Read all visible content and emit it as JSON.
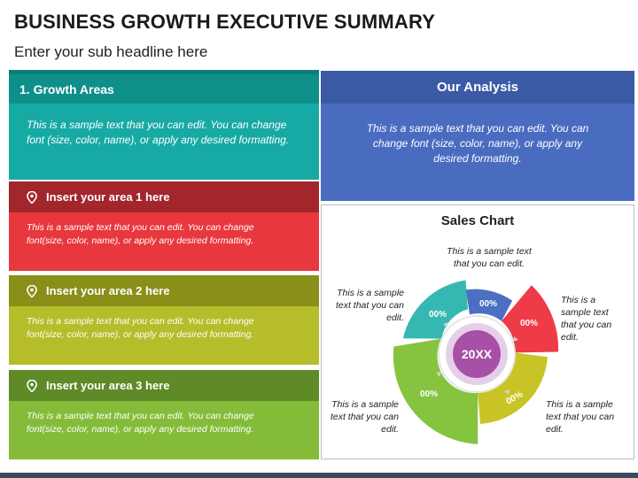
{
  "header": {
    "title": "BUSINESS GROWTH EXECUTIVE SUMMARY",
    "subtitle": "Enter your sub headline here"
  },
  "growth": {
    "title": "1. Growth Areas",
    "text": "This is a sample text that you can edit. You can change font (size, color, name), or apply any desired formatting.",
    "colors": {
      "header": "#0f8f8a",
      "body": "#17aaa4",
      "tab": "#0b7d78"
    }
  },
  "areas": [
    {
      "title": "Insert your area 1 here",
      "text": "This is a sample text that you can edit. You can change font(size, color, name), or apply any desired formatting.",
      "header_color": "#a3262c",
      "body_color": "#e8383d",
      "icon": "location-pin-icon"
    },
    {
      "title": "Insert your area 2 here",
      "text": "This is a sample text that you can edit. You can change font(size, color, name), or apply any desired formatting.",
      "header_color": "#8a8f1a",
      "body_color": "#b5bd2a",
      "icon": "location-pin-icon"
    },
    {
      "title": "Insert your area 3 here",
      "text": "This is a sample text that you can edit. You can change font(size, color, name), or apply any desired formatting.",
      "header_color": "#5e8a27",
      "body_color": "#84bc3a",
      "icon": "location-pin-icon"
    }
  ],
  "analysis": {
    "title": "Our Analysis",
    "text": "This is a sample text that you can edit. You can change font (size, color, name), or apply any desired formatting.",
    "colors": {
      "header": "#3b5aa6",
      "body": "#4a6cc0"
    }
  },
  "sales_chart": {
    "title": "Sales Chart",
    "center_label": "20XX",
    "segments": [
      {
        "label": "00%",
        "color": "#35b8b1"
      },
      {
        "label": "00%",
        "color": "#4b6fc2"
      },
      {
        "label": "00%",
        "color": "#ee3b47"
      },
      {
        "label": "00%",
        "color": "#c9c425"
      },
      {
        "label": "00%",
        "color": "#86c43f"
      }
    ],
    "notes": {
      "top": "This is a sample text that you can edit.",
      "left": "This is a sample text that you can edit.",
      "right": "This is a sample text that you can edit.",
      "bottom_left": "This is a sample text that you can edit.",
      "bottom_right": "This is a sample text that you can edit."
    }
  }
}
